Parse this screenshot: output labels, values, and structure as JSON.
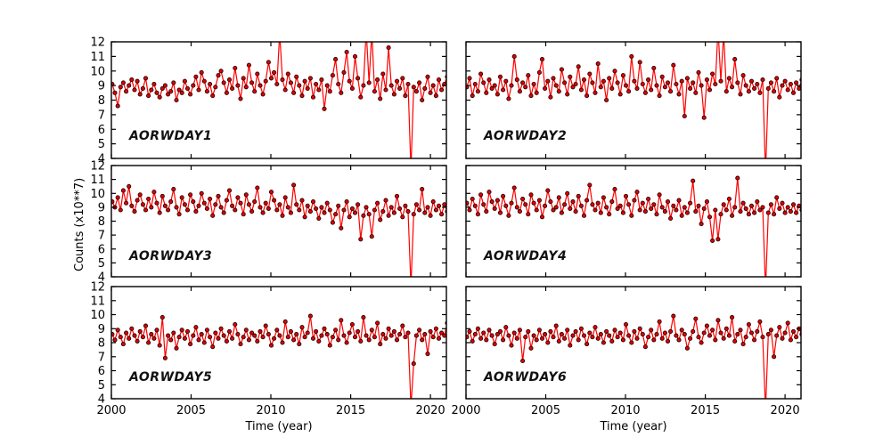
{
  "figure": {
    "colors": {
      "line": "#ff0000",
      "marker_fill": "#e00000",
      "marker_edge": "#2a0000",
      "frame": "#000000",
      "text": "#000000",
      "background": "#ffffff"
    }
  },
  "chart_data": {
    "type": "line",
    "title": "",
    "xlabel": "Time (year)",
    "ylabel": "Counts (x10**7)",
    "xlim": [
      2000,
      2021
    ],
    "ylim": [
      4,
      12
    ],
    "grid": false,
    "legend": "none",
    "x_tick_values": [
      2000,
      2005,
      2010,
      2015,
      2020
    ],
    "x_tick_labels": [
      "2000",
      "2005",
      "2010",
      "2015",
      "2020"
    ],
    "y_tick_values": [
      4,
      5,
      6,
      7,
      8,
      9,
      10,
      11,
      12
    ],
    "y_tick_labels": [
      "4",
      "5",
      "6",
      "7",
      "8",
      "9",
      "10",
      "11",
      "12"
    ],
    "x_start": 2000.05,
    "x_step": 0.175,
    "series": [
      {
        "name": "AORWDAY1",
        "values": [
          9.1,
          8.5,
          7.6,
          8.9,
          9.2,
          8.6,
          9.0,
          9.4,
          8.7,
          9.3,
          8.4,
          8.8,
          9.5,
          8.3,
          8.7,
          9.1,
          8.5,
          8.2,
          8.8,
          9.0,
          8.4,
          8.6,
          9.2,
          8.0,
          8.7,
          8.5,
          9.3,
          8.8,
          8.4,
          9.0,
          9.6,
          8.7,
          9.9,
          9.3,
          8.6,
          9.1,
          8.3,
          8.9,
          9.7,
          10.0,
          9.2,
          8.5,
          9.4,
          8.8,
          10.2,
          9.0,
          8.1,
          9.5,
          8.9,
          10.4,
          9.2,
          8.6,
          9.8,
          9.0,
          8.4,
          9.3,
          10.6,
          9.5,
          9.9,
          9.1,
          12.6,
          9.4,
          8.7,
          9.8,
          9.2,
          8.5,
          9.6,
          9.0,
          8.3,
          9.3,
          8.8,
          9.5,
          8.2,
          9.1,
          8.7,
          9.4,
          7.4,
          9.0,
          8.6,
          9.7,
          10.8,
          9.1,
          8.5,
          9.9,
          11.3,
          9.3,
          8.8,
          11.0,
          9.5,
          8.2,
          9.0,
          12.8,
          9.2,
          12.7,
          8.6,
          9.4,
          8.1,
          9.8,
          8.7,
          11.6,
          9.0,
          8.4,
          9.3,
          8.8,
          9.5,
          8.3,
          9.1,
          3.2,
          8.9,
          8.6,
          9.2,
          8.0,
          8.8,
          9.6,
          8.5,
          9.0,
          8.3,
          9.4,
          8.7,
          9.1,
          9.6
        ]
      },
      {
        "name": "AORWDAY2",
        "values": [
          8.9,
          9.5,
          8.3,
          9.1,
          8.6,
          9.8,
          9.2,
          8.5,
          9.4,
          8.8,
          9.0,
          8.4,
          9.6,
          8.7,
          9.3,
          8.1,
          9.0,
          11.0,
          9.4,
          8.6,
          9.2,
          8.9,
          9.7,
          8.3,
          9.1,
          8.5,
          9.9,
          10.8,
          8.8,
          9.3,
          8.2,
          9.5,
          9.0,
          8.6,
          10.1,
          9.2,
          8.4,
          9.6,
          8.9,
          9.1,
          10.3,
          8.7,
          9.4,
          8.3,
          9.8,
          9.2,
          8.5,
          10.5,
          8.9,
          9.3,
          8.0,
          9.5,
          8.8,
          10.0,
          9.2,
          8.4,
          9.7,
          9.0,
          8.6,
          11.0,
          9.3,
          8.8,
          10.6,
          9.1,
          8.5,
          9.4,
          8.7,
          10.2,
          9.0,
          8.3,
          9.6,
          8.9,
          9.2,
          8.6,
          10.4,
          9.1,
          8.4,
          9.3,
          6.9,
          9.5,
          8.8,
          9.2,
          8.5,
          9.9,
          9.0,
          6.8,
          9.4,
          8.7,
          9.8,
          9.1,
          12.9,
          9.3,
          12.6,
          8.6,
          9.5,
          8.9,
          10.8,
          9.2,
          8.4,
          9.7,
          9.0,
          8.6,
          9.3,
          8.8,
          9.1,
          8.5,
          9.4,
          3.0,
          8.8,
          9.2,
          8.6,
          9.5,
          8.2,
          9.0,
          9.3,
          8.7,
          9.1,
          8.5,
          9.2,
          8.8,
          9.4
        ]
      },
      {
        "name": "AORWDAY3",
        "values": [
          9.4,
          9.0,
          9.7,
          8.8,
          10.2,
          9.3,
          10.5,
          9.1,
          8.7,
          9.5,
          9.9,
          9.2,
          8.8,
          9.6,
          9.0,
          10.1,
          9.3,
          8.6,
          9.8,
          9.1,
          8.8,
          9.4,
          10.3,
          9.0,
          8.5,
          9.7,
          9.2,
          8.8,
          9.9,
          9.4,
          8.7,
          9.1,
          10.0,
          9.3,
          8.9,
          9.6,
          8.4,
          9.2,
          9.8,
          9.0,
          8.6,
          9.5,
          10.2,
          9.1,
          8.8,
          9.7,
          9.3,
          8.5,
          9.9,
          9.2,
          8.7,
          9.4,
          10.4,
          9.0,
          8.6,
          9.3,
          8.9,
          10.1,
          9.5,
          8.8,
          9.2,
          8.4,
          9.7,
          9.0,
          8.6,
          10.6,
          9.2,
          8.8,
          9.5,
          8.3,
          9.1,
          8.7,
          9.4,
          8.9,
          8.2,
          9.0,
          8.6,
          9.3,
          8.8,
          7.9,
          8.5,
          9.1,
          7.5,
          8.8,
          9.4,
          8.3,
          8.9,
          8.6,
          9.2,
          6.7,
          8.4,
          9.0,
          8.5,
          6.9,
          8.8,
          9.3,
          8.1,
          8.7,
          9.5,
          8.4,
          9.0,
          8.6,
          9.8,
          8.9,
          8.3,
          9.1,
          8.7,
          3.3,
          8.5,
          9.2,
          8.8,
          10.3,
          8.6,
          9.0,
          8.4,
          9.4,
          8.8,
          9.1,
          8.5,
          9.2,
          8.7
        ]
      },
      {
        "name": "AORWDAY4",
        "values": [
          9.3,
          8.8,
          9.6,
          9.1,
          8.5,
          9.9,
          9.2,
          8.7,
          10.1,
          9.4,
          8.9,
          9.5,
          8.6,
          9.8,
          9.1,
          8.4,
          9.3,
          10.4,
          9.0,
          8.7,
          9.6,
          9.2,
          8.5,
          9.9,
          9.3,
          8.8,
          9.5,
          8.3,
          9.1,
          10.2,
          9.4,
          8.8,
          9.0,
          9.7,
          8.6,
          9.2,
          10.0,
          8.9,
          9.4,
          8.7,
          9.8,
          9.1,
          8.4,
          9.5,
          10.6,
          9.2,
          8.8,
          9.3,
          8.6,
          9.7,
          9.0,
          8.5,
          9.4,
          10.3,
          8.9,
          9.1,
          8.6,
          9.8,
          9.2,
          8.4,
          9.5,
          10.1,
          8.8,
          9.3,
          8.7,
          9.6,
          8.9,
          9.2,
          8.5,
          9.9,
          9.0,
          8.7,
          9.4,
          8.2,
          9.1,
          8.8,
          9.5,
          8.4,
          9.0,
          8.6,
          9.3,
          10.9,
          8.7,
          9.1,
          7.8,
          8.9,
          9.4,
          8.3,
          6.6,
          8.8,
          6.7,
          8.5,
          9.2,
          8.8,
          9.6,
          8.4,
          9.0,
          11.1,
          8.7,
          9.3,
          8.9,
          8.5,
          9.1,
          8.6,
          9.4,
          8.8,
          9.0,
          3.1,
          8.6,
          9.2,
          8.5,
          9.7,
          8.9,
          9.3,
          8.6,
          9.0,
          8.7,
          9.2,
          8.6,
          9.1,
          8.8
        ]
      },
      {
        "name": "AORWDAY5",
        "values": [
          8.6,
          8.2,
          8.9,
          8.4,
          7.9,
          8.7,
          8.3,
          9.0,
          8.5,
          8.1,
          8.8,
          8.4,
          9.2,
          8.0,
          8.6,
          8.3,
          8.9,
          7.8,
          9.8,
          6.9,
          8.5,
          8.2,
          8.7,
          7.6,
          8.4,
          8.9,
          8.3,
          8.8,
          7.9,
          8.5,
          9.1,
          8.2,
          8.6,
          8.0,
          8.9,
          8.4,
          7.7,
          8.7,
          8.3,
          9.0,
          8.5,
          8.1,
          8.8,
          8.3,
          9.3,
          8.6,
          7.9,
          8.4,
          8.9,
          8.2,
          8.7,
          8.5,
          8.1,
          8.8,
          8.4,
          9.2,
          8.6,
          7.8,
          8.3,
          8.9,
          8.5,
          8.0,
          9.5,
          8.4,
          8.8,
          8.2,
          8.6,
          7.9,
          9.1,
          8.4,
          8.7,
          9.9,
          8.3,
          8.8,
          8.1,
          8.5,
          9.0,
          8.6,
          7.8,
          8.4,
          8.9,
          8.2,
          9.6,
          8.5,
          8.0,
          8.7,
          9.3,
          8.4,
          8.8,
          8.1,
          9.8,
          8.5,
          8.2,
          8.9,
          8.4,
          9.4,
          7.9,
          8.6,
          8.3,
          9.0,
          8.5,
          8.8,
          8.2,
          8.6,
          9.2,
          8.4,
          8.7,
          3.4,
          6.5,
          8.5,
          8.9,
          8.2,
          8.6,
          7.2,
          8.8,
          8.4,
          9.0,
          8.3,
          8.7,
          8.5,
          9.4
        ]
      },
      {
        "name": "AORWDAY6",
        "values": [
          8.4,
          8.8,
          8.1,
          8.6,
          9.0,
          8.3,
          8.7,
          8.2,
          8.9,
          8.5,
          7.9,
          8.6,
          8.8,
          8.2,
          9.1,
          8.5,
          7.8,
          8.7,
          8.3,
          8.9,
          6.7,
          8.4,
          8.8,
          7.6,
          8.5,
          8.2,
          8.9,
          8.3,
          8.6,
          8.0,
          8.8,
          8.4,
          9.2,
          8.1,
          8.6,
          8.3,
          8.9,
          7.8,
          8.5,
          8.8,
          8.2,
          9.0,
          8.5,
          7.9,
          8.7,
          8.4,
          9.1,
          8.3,
          8.6,
          8.0,
          8.8,
          8.5,
          8.1,
          8.9,
          8.4,
          8.7,
          8.2,
          9.3,
          8.5,
          8.0,
          8.8,
          8.3,
          9.0,
          8.6,
          7.7,
          8.4,
          8.9,
          8.2,
          8.6,
          9.5,
          8.3,
          8.7,
          8.1,
          8.8,
          9.9,
          8.5,
          8.2,
          8.9,
          8.6,
          7.6,
          8.3,
          8.8,
          9.7,
          8.4,
          8.0,
          8.7,
          9.2,
          8.5,
          8.9,
          8.2,
          9.6,
          8.7,
          8.3,
          9.0,
          8.5,
          9.8,
          8.1,
          8.6,
          8.9,
          7.9,
          8.4,
          9.3,
          8.7,
          8.2,
          8.8,
          9.5,
          8.4,
          3.2,
          8.6,
          8.9,
          7.0,
          8.5,
          9.1,
          8.3,
          8.7,
          9.4,
          8.2,
          8.8,
          8.4,
          9.0,
          8.6
        ]
      }
    ]
  }
}
